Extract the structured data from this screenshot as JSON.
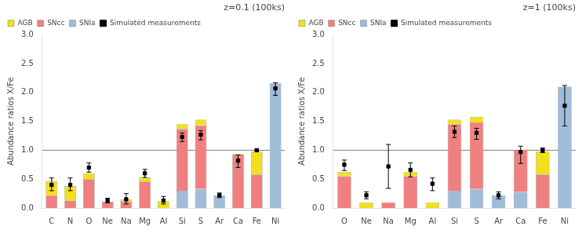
{
  "chart_data": [
    {
      "type": "bar",
      "stacked": true,
      "title": "z=0.1 (100ks)",
      "categories": [
        "C",
        "N",
        "O",
        "Ne",
        "Na",
        "Mg",
        "Al",
        "Si",
        "S",
        "Ar",
        "Ca",
        "Fe",
        "Ni"
      ],
      "ylabel": "Abundance ratios X/Fe",
      "ylim": [
        0,
        3.0
      ],
      "yticks": [
        {
          "value": 0,
          "label": "0.0"
        },
        0.5,
        {
          "value": 1.0,
          "label": "1.0"
        },
        1.5,
        {
          "value": 2.0,
          "label": "2.0"
        },
        2.5,
        {
          "value": 3.0,
          "label": "3.0"
        }
      ],
      "grid": false,
      "legend": "upper left",
      "hline_y": 1.0,
      "series": [
        {
          "name": "AGB",
          "color": "#f0e020",
          "values": [
            0.25,
            0.25,
            0.1,
            0.0,
            0.04,
            0.07,
            0.12,
            0.08,
            0.1,
            0.0,
            0.0,
            0.4,
            0.0
          ]
        },
        {
          "name": "SNcc",
          "color": "#f08080",
          "values": [
            0.22,
            0.13,
            0.5,
            0.11,
            0.11,
            0.46,
            0.0,
            1.07,
            1.1,
            0.0,
            0.93,
            0.58,
            0.0
          ]
        },
        {
          "name": "SNIa",
          "color": "#a0bcd8",
          "values": [
            0.0,
            0.0,
            0.0,
            0.0,
            0.0,
            0.0,
            0.0,
            0.3,
            0.33,
            0.22,
            0.0,
            0.0,
            2.16
          ]
        },
        {
          "name": "Simulated measurements",
          "type": "scatter",
          "marker": "square",
          "color": "black",
          "values": [
            0.4,
            0.4,
            0.7,
            0.13,
            0.15,
            0.6,
            0.13,
            1.23,
            1.27,
            0.22,
            0.82,
            1.0,
            2.07
          ],
          "err_lo": [
            0.1,
            0.1,
            0.08,
            0.04,
            0.08,
            0.07,
            0.06,
            0.08,
            0.09,
            0.04,
            0.12,
            0.02,
            0.12
          ],
          "err_hi": [
            0.12,
            0.12,
            0.08,
            0.04,
            0.1,
            0.07,
            0.07,
            0.07,
            0.07,
            0.04,
            0.1,
            0.02,
            0.1
          ]
        }
      ]
    },
    {
      "type": "bar",
      "stacked": true,
      "title": "z=1 (100ks)",
      "categories": [
        "O",
        "Ne",
        "Na",
        "Mg",
        "Al",
        "Si",
        "S",
        "Ar",
        "Ca",
        "Fe",
        "Ni"
      ],
      "ylabel": "Abundance ratios X/Fe",
      "ylim": [
        0,
        3.0
      ],
      "yticks": [
        {
          "value": 0,
          "label": "0.0"
        },
        0.5,
        {
          "value": 1.0,
          "label": "1.0"
        },
        1.5,
        {
          "value": 2.0,
          "label": "2.0"
        },
        2.5,
        {
          "value": 3.0,
          "label": "3.0"
        }
      ],
      "grid": false,
      "legend": "upper left",
      "hline_y": 1.0,
      "series": [
        {
          "name": "AGB",
          "color": "#f0e020",
          "values": [
            0.07,
            0.1,
            0.0,
            0.07,
            0.1,
            0.08,
            0.1,
            0.0,
            0.0,
            0.4,
            0.0
          ]
        },
        {
          "name": "SNcc",
          "color": "#f08080",
          "values": [
            0.55,
            0.0,
            0.1,
            0.55,
            0.0,
            1.15,
            1.15,
            0.0,
            0.73,
            0.58,
            0.0
          ]
        },
        {
          "name": "SNIa",
          "color": "#a0bcd8",
          "values": [
            0.0,
            0.0,
            0.0,
            0.0,
            0.0,
            0.3,
            0.33,
            0.22,
            0.28,
            0.0,
            2.1
          ]
        },
        {
          "name": "Simulated measurements",
          "type": "scatter",
          "marker": "square",
          "color": "black",
          "values": [
            0.75,
            0.22,
            0.72,
            0.66,
            0.42,
            1.32,
            1.3,
            0.22,
            0.97,
            1.0,
            1.77
          ],
          "err_lo": [
            0.1,
            0.06,
            0.38,
            0.12,
            0.12,
            0.1,
            0.11,
            0.06,
            0.2,
            0.04,
            0.35
          ],
          "err_hi": [
            0.08,
            0.06,
            0.38,
            0.12,
            0.1,
            0.1,
            0.08,
            0.06,
            0.1,
            0.04,
            0.35
          ]
        }
      ]
    }
  ]
}
